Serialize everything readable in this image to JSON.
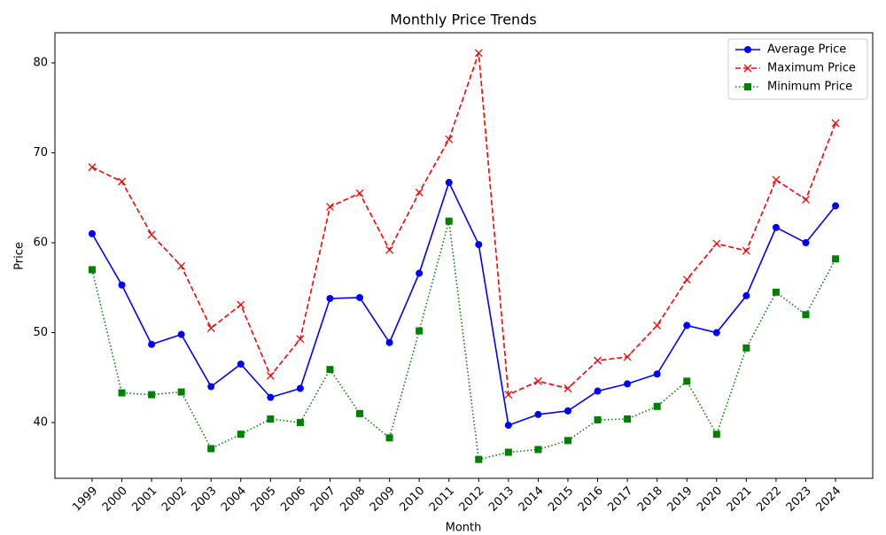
{
  "chart_data": {
    "type": "line",
    "title": "Monthly Price Trends",
    "x_label": "Month",
    "y_label": "Price",
    "categories": [
      "1999",
      "2000",
      "2001",
      "2002",
      "2003",
      "2004",
      "2005",
      "2006",
      "2007",
      "2008",
      "2009",
      "2010",
      "2011",
      "2012",
      "2013",
      "2014",
      "2015",
      "2016",
      "2017",
      "2018",
      "2019",
      "2020",
      "2021",
      "2022",
      "2023",
      "2024"
    ],
    "series": [
      {
        "name": "Average Price",
        "color": "#0000ff",
        "marker": "circle",
        "linestyle": "solid",
        "values": [
          61.0,
          55.3,
          48.7,
          49.8,
          44.0,
          46.5,
          42.8,
          43.8,
          53.8,
          53.9,
          48.9,
          56.6,
          66.7,
          59.8,
          39.7,
          40.9,
          41.3,
          43.5,
          44.3,
          45.4,
          50.8,
          50.0,
          54.1,
          61.7,
          60.0,
          64.1
        ]
      },
      {
        "name": "Maximum Price",
        "color": "#ff0000",
        "marker": "x",
        "linestyle": "dashed",
        "values": [
          68.4,
          66.8,
          60.9,
          57.4,
          50.5,
          53.1,
          45.2,
          49.3,
          64.0,
          65.5,
          59.2,
          65.6,
          71.5,
          81.1,
          43.1,
          44.6,
          43.8,
          46.9,
          47.3,
          50.8,
          55.9,
          59.9,
          59.1,
          67.0,
          64.8,
          73.3
        ]
      },
      {
        "name": "Minimum Price",
        "color": "#008000",
        "marker": "square",
        "linestyle": "dotted",
        "values": [
          57.0,
          43.3,
          43.1,
          43.4,
          37.1,
          38.7,
          40.4,
          40.0,
          45.9,
          41.0,
          38.3,
          50.2,
          62.4,
          35.9,
          36.7,
          37.0,
          38.0,
          40.3,
          40.4,
          41.8,
          44.6,
          38.7,
          48.3,
          54.5,
          52.0,
          58.2
        ]
      }
    ],
    "ylim": [
      33.8,
      83.35
    ],
    "yticks": [
      40,
      50,
      60,
      70,
      80
    ],
    "grid": false,
    "legend": "upper right"
  }
}
